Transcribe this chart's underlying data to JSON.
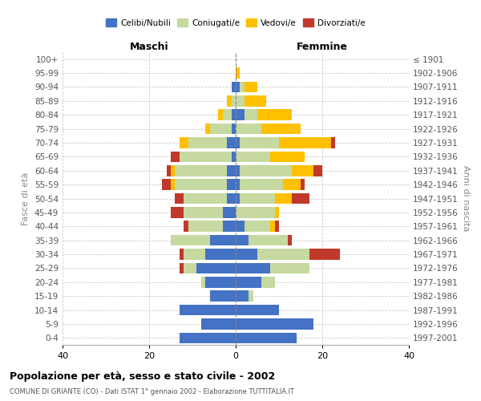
{
  "age_groups": [
    "0-4",
    "5-9",
    "10-14",
    "15-19",
    "20-24",
    "25-29",
    "30-34",
    "35-39",
    "40-44",
    "45-49",
    "50-54",
    "55-59",
    "60-64",
    "65-69",
    "70-74",
    "75-79",
    "80-84",
    "85-89",
    "90-94",
    "95-99",
    "100+"
  ],
  "birth_years": [
    "1997-2001",
    "1992-1996",
    "1987-1991",
    "1982-1986",
    "1977-1981",
    "1972-1976",
    "1967-1971",
    "1962-1966",
    "1957-1961",
    "1952-1956",
    "1947-1951",
    "1942-1946",
    "1937-1941",
    "1932-1936",
    "1927-1931",
    "1922-1926",
    "1917-1921",
    "1912-1916",
    "1907-1911",
    "1902-1906",
    "≤ 1901"
  ],
  "maschi": {
    "celibi": [
      13,
      8,
      13,
      6,
      7,
      9,
      7,
      6,
      3,
      3,
      2,
      2,
      2,
      1,
      2,
      1,
      1,
      0,
      1,
      0,
      0
    ],
    "coniugati": [
      0,
      0,
      0,
      0,
      1,
      3,
      5,
      9,
      8,
      9,
      10,
      12,
      12,
      12,
      9,
      5,
      2,
      1,
      0,
      0,
      0
    ],
    "vedovi": [
      0,
      0,
      0,
      0,
      0,
      0,
      0,
      0,
      0,
      0,
      0,
      1,
      1,
      0,
      2,
      1,
      1,
      1,
      0,
      0,
      0
    ],
    "divorziati": [
      0,
      0,
      0,
      0,
      0,
      1,
      1,
      0,
      1,
      3,
      2,
      2,
      1,
      2,
      0,
      0,
      0,
      0,
      0,
      0,
      0
    ]
  },
  "femmine": {
    "nubili": [
      14,
      18,
      10,
      3,
      6,
      8,
      5,
      3,
      2,
      0,
      1,
      1,
      1,
      0,
      1,
      0,
      2,
      0,
      1,
      0,
      0
    ],
    "coniugate": [
      0,
      0,
      0,
      1,
      3,
      9,
      12,
      9,
      6,
      9,
      8,
      10,
      12,
      8,
      9,
      6,
      3,
      2,
      1,
      0,
      0
    ],
    "vedove": [
      0,
      0,
      0,
      0,
      0,
      0,
      0,
      0,
      1,
      1,
      4,
      4,
      5,
      8,
      12,
      9,
      8,
      5,
      3,
      1,
      0
    ],
    "divorziate": [
      0,
      0,
      0,
      0,
      0,
      0,
      7,
      1,
      1,
      0,
      4,
      1,
      2,
      0,
      1,
      0,
      0,
      0,
      0,
      0,
      0
    ]
  },
  "colors": {
    "celibi": "#4472c4",
    "coniugati": "#c5d9a0",
    "vedovi": "#ffc000",
    "divorziati": "#c0392b"
  },
  "xlim": 40,
  "title": "Popolazione per età, sesso e stato civile - 2002",
  "subtitle": "COMUNE DI GRIANTE (CO) - Dati ISTAT 1° gennaio 2002 - Elaborazione TUTTITALIA.IT",
  "xlabel_left": "Maschi",
  "xlabel_right": "Femmine",
  "ylabel_left": "Fasce di età",
  "ylabel_right": "Anni di nascita",
  "legend_labels": [
    "Celibi/Nubili",
    "Coniugati/e",
    "Vedovi/e",
    "Divorziati/e"
  ]
}
